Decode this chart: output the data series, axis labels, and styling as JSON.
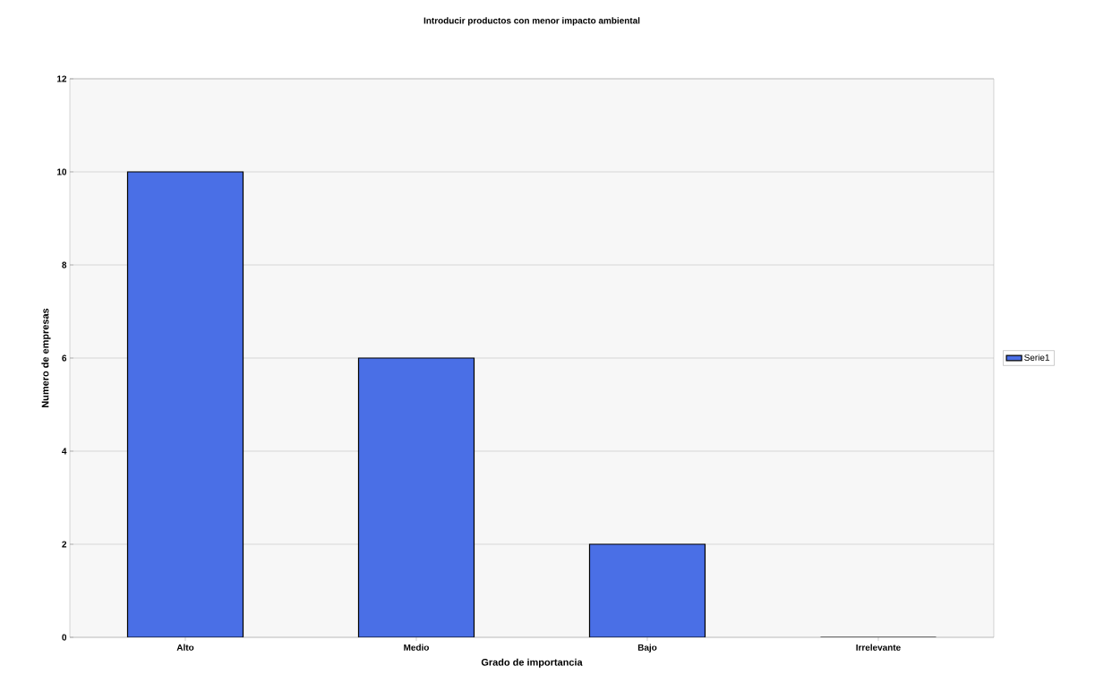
{
  "chart_data": {
    "type": "bar",
    "title": "Introducir productos con menor impacto ambiental",
    "xlabel": "Grado de importancia",
    "ylabel": "Numero de empresas",
    "categories": [
      "Alto",
      "Medio",
      "Bajo",
      "Irrelevante"
    ],
    "series": [
      {
        "name": "Serie1",
        "color": "#4a6fe6",
        "values": [
          10,
          6,
          2,
          0
        ]
      }
    ],
    "ylim": [
      0,
      12
    ],
    "yticks": [
      0,
      2,
      4,
      6,
      8,
      10,
      12
    ],
    "grid": "y",
    "legend": "right"
  }
}
